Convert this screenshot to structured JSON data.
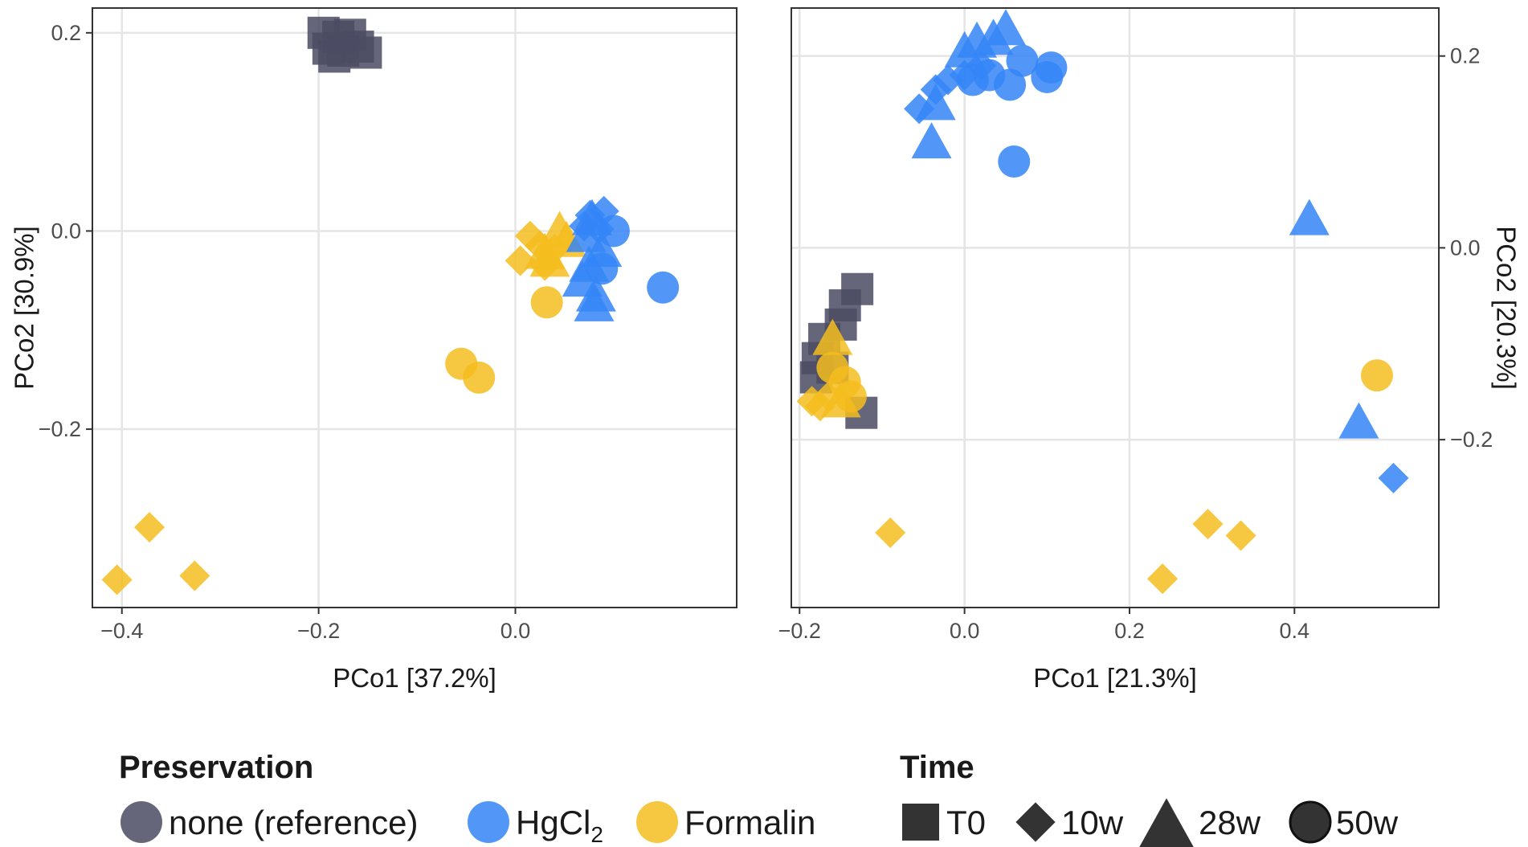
{
  "colors": {
    "none": "#4b4b63",
    "HgCl2": "#3485f7",
    "Formalin": "#f5bd1f",
    "shape_key": "#333333",
    "grid": "#e5e5e5",
    "frame": "#333333"
  },
  "chart_data": [
    {
      "type": "scatter",
      "xlabel": "PCo1 [37.2%]",
      "ylabel": "PCo2 [30.9%]",
      "xlim": [
        -0.43,
        0.225
      ],
      "ylim": [
        -0.38,
        0.225
      ],
      "xticks": [
        -0.4,
        -0.2,
        0.0
      ],
      "xtick_labels": [
        "−0.4",
        "−0.2",
        "0.0"
      ],
      "yticks": [
        -0.2,
        0.0,
        0.2
      ],
      "ytick_labels": [
        "−0.2",
        "0.0",
        "0.2"
      ],
      "y_axis_side": "left",
      "points": [
        {
          "x": -0.195,
          "y": 0.2,
          "p": "none",
          "t": "T0"
        },
        {
          "x": -0.18,
          "y": 0.196,
          "p": "none",
          "t": "T0"
        },
        {
          "x": -0.168,
          "y": 0.198,
          "p": "none",
          "t": "T0"
        },
        {
          "x": -0.19,
          "y": 0.184,
          "p": "none",
          "t": "T0"
        },
        {
          "x": -0.175,
          "y": 0.182,
          "p": "none",
          "t": "T0"
        },
        {
          "x": -0.16,
          "y": 0.186,
          "p": "none",
          "t": "T0"
        },
        {
          "x": -0.152,
          "y": 0.18,
          "p": "none",
          "t": "T0"
        },
        {
          "x": -0.184,
          "y": 0.176,
          "p": "none",
          "t": "T0"
        },
        {
          "x": -0.405,
          "y": -0.352,
          "p": "Formalin",
          "t": "10w"
        },
        {
          "x": -0.372,
          "y": -0.299,
          "p": "Formalin",
          "t": "10w"
        },
        {
          "x": -0.326,
          "y": -0.348,
          "p": "Formalin",
          "t": "10w"
        },
        {
          "x": 0.015,
          "y": -0.005,
          "p": "Formalin",
          "t": "10w"
        },
        {
          "x": 0.025,
          "y": -0.015,
          "p": "Formalin",
          "t": "10w"
        },
        {
          "x": 0.005,
          "y": -0.03,
          "p": "Formalin",
          "t": "10w"
        },
        {
          "x": 0.04,
          "y": -0.018,
          "p": "Formalin",
          "t": "10w"
        },
        {
          "x": 0.03,
          "y": -0.035,
          "p": "Formalin",
          "t": "10w"
        },
        {
          "x": 0.045,
          "y": 0.0,
          "p": "Formalin",
          "t": "28w"
        },
        {
          "x": 0.03,
          "y": -0.022,
          "p": "Formalin",
          "t": "28w"
        },
        {
          "x": 0.035,
          "y": -0.03,
          "p": "Formalin",
          "t": "28w"
        },
        {
          "x": 0.052,
          "y": -0.01,
          "p": "Formalin",
          "t": "28w"
        },
        {
          "x": 0.032,
          "y": -0.072,
          "p": "Formalin",
          "t": "50w"
        },
        {
          "x": -0.055,
          "y": -0.134,
          "p": "Formalin",
          "t": "50w"
        },
        {
          "x": -0.037,
          "y": -0.148,
          "p": "Formalin",
          "t": "50w"
        },
        {
          "x": 0.076,
          "y": 0.016,
          "p": "HgCl2",
          "t": "10w"
        },
        {
          "x": 0.09,
          "y": 0.02,
          "p": "HgCl2",
          "t": "10w"
        },
        {
          "x": 0.07,
          "y": 0.005,
          "p": "HgCl2",
          "t": "10w"
        },
        {
          "x": 0.085,
          "y": 0.002,
          "p": "HgCl2",
          "t": "10w"
        },
        {
          "x": 0.078,
          "y": 0.012,
          "p": "HgCl2",
          "t": "28w"
        },
        {
          "x": 0.072,
          "y": -0.005,
          "p": "HgCl2",
          "t": "28w"
        },
        {
          "x": 0.088,
          "y": -0.02,
          "p": "HgCl2",
          "t": "28w"
        },
        {
          "x": 0.075,
          "y": -0.035,
          "p": "HgCl2",
          "t": "28w"
        },
        {
          "x": 0.068,
          "y": -0.05,
          "p": "HgCl2",
          "t": "28w"
        },
        {
          "x": 0.082,
          "y": -0.065,
          "p": "HgCl2",
          "t": "28w"
        },
        {
          "x": 0.08,
          "y": -0.075,
          "p": "HgCl2",
          "t": "28w"
        },
        {
          "x": 0.1,
          "y": 0.0,
          "p": "HgCl2",
          "t": "50w"
        },
        {
          "x": 0.088,
          "y": -0.038,
          "p": "HgCl2",
          "t": "50w"
        },
        {
          "x": 0.15,
          "y": -0.057,
          "p": "HgCl2",
          "t": "50w"
        }
      ]
    },
    {
      "type": "scatter",
      "xlabel": "PCo1 [21.3%]",
      "ylabel": "PCo2 [20.3%]",
      "xlim": [
        -0.21,
        0.575
      ],
      "ylim": [
        -0.375,
        0.25
      ],
      "xticks": [
        -0.2,
        0.0,
        0.2,
        0.4
      ],
      "xtick_labels": [
        "−0.2",
        "0.0",
        "0.2",
        "0.4"
      ],
      "yticks": [
        -0.2,
        0.0,
        0.2
      ],
      "ytick_labels": [
        "−0.2",
        "0.0",
        "0.2"
      ],
      "y_axis_side": "right",
      "points": [
        {
          "x": -0.13,
          "y": -0.043,
          "p": "none",
          "t": "T0"
        },
        {
          "x": -0.145,
          "y": -0.06,
          "p": "none",
          "t": "T0"
        },
        {
          "x": -0.15,
          "y": -0.08,
          "p": "none",
          "t": "T0"
        },
        {
          "x": -0.17,
          "y": -0.095,
          "p": "none",
          "t": "T0"
        },
        {
          "x": -0.178,
          "y": -0.115,
          "p": "none",
          "t": "T0"
        },
        {
          "x": -0.18,
          "y": -0.135,
          "p": "none",
          "t": "T0"
        },
        {
          "x": -0.16,
          "y": -0.125,
          "p": "none",
          "t": "T0"
        },
        {
          "x": -0.125,
          "y": -0.172,
          "p": "none",
          "t": "T0"
        },
        {
          "x": -0.055,
          "y": 0.145,
          "p": "HgCl2",
          "t": "10w"
        },
        {
          "x": -0.035,
          "y": 0.165,
          "p": "HgCl2",
          "t": "10w"
        },
        {
          "x": -0.02,
          "y": 0.175,
          "p": "HgCl2",
          "t": "10w"
        },
        {
          "x": 0.0,
          "y": 0.18,
          "p": "HgCl2",
          "t": "10w"
        },
        {
          "x": 0.02,
          "y": 0.19,
          "p": "HgCl2",
          "t": "10w"
        },
        {
          "x": 0.52,
          "y": -0.24,
          "p": "HgCl2",
          "t": "10w"
        },
        {
          "x": 0.0,
          "y": 0.205,
          "p": "HgCl2",
          "t": "28w"
        },
        {
          "x": 0.015,
          "y": 0.215,
          "p": "HgCl2",
          "t": "28w"
        },
        {
          "x": 0.035,
          "y": 0.218,
          "p": "HgCl2",
          "t": "28w"
        },
        {
          "x": 0.05,
          "y": 0.228,
          "p": "HgCl2",
          "t": "28w"
        },
        {
          "x": -0.04,
          "y": 0.11,
          "p": "HgCl2",
          "t": "28w"
        },
        {
          "x": -0.035,
          "y": 0.15,
          "p": "HgCl2",
          "t": "28w"
        },
        {
          "x": 0.418,
          "y": 0.03,
          "p": "HgCl2",
          "t": "28w"
        },
        {
          "x": 0.478,
          "y": -0.182,
          "p": "HgCl2",
          "t": "28w"
        },
        {
          "x": 0.01,
          "y": 0.175,
          "p": "HgCl2",
          "t": "50w"
        },
        {
          "x": 0.03,
          "y": 0.18,
          "p": "HgCl2",
          "t": "50w"
        },
        {
          "x": 0.055,
          "y": 0.17,
          "p": "HgCl2",
          "t": "50w"
        },
        {
          "x": 0.07,
          "y": 0.195,
          "p": "HgCl2",
          "t": "50w"
        },
        {
          "x": 0.1,
          "y": 0.178,
          "p": "HgCl2",
          "t": "50w"
        },
        {
          "x": 0.105,
          "y": 0.188,
          "p": "HgCl2",
          "t": "50w"
        },
        {
          "x": 0.06,
          "y": 0.09,
          "p": "HgCl2",
          "t": "50w"
        },
        {
          "x": -0.185,
          "y": -0.16,
          "p": "Formalin",
          "t": "10w"
        },
        {
          "x": -0.175,
          "y": -0.165,
          "p": "Formalin",
          "t": "10w"
        },
        {
          "x": -0.165,
          "y": -0.155,
          "p": "Formalin",
          "t": "10w"
        },
        {
          "x": -0.09,
          "y": -0.297,
          "p": "Formalin",
          "t": "10w"
        },
        {
          "x": 0.24,
          "y": -0.345,
          "p": "Formalin",
          "t": "10w"
        },
        {
          "x": 0.295,
          "y": -0.288,
          "p": "Formalin",
          "t": "10w"
        },
        {
          "x": 0.335,
          "y": -0.3,
          "p": "Formalin",
          "t": "10w"
        },
        {
          "x": -0.16,
          "y": -0.095,
          "p": "Formalin",
          "t": "28w"
        },
        {
          "x": -0.15,
          "y": -0.16,
          "p": "Formalin",
          "t": "28w"
        },
        {
          "x": -0.16,
          "y": -0.125,
          "p": "Formalin",
          "t": "50w"
        },
        {
          "x": -0.145,
          "y": -0.14,
          "p": "Formalin",
          "t": "50w"
        },
        {
          "x": -0.138,
          "y": -0.155,
          "p": "Formalin",
          "t": "50w"
        },
        {
          "x": 0.5,
          "y": -0.133,
          "p": "Formalin",
          "t": "50w"
        }
      ]
    }
  ],
  "legend": {
    "preservation_title": "Preservation",
    "preservation": [
      {
        "key": "none",
        "label": "none (reference)"
      },
      {
        "key": "HgCl2",
        "label": "HgCl",
        "sub": "2"
      },
      {
        "key": "Formalin",
        "label": "Formalin"
      }
    ],
    "time_title": "Time",
    "time": [
      {
        "key": "T0",
        "label": "T0"
      },
      {
        "key": "10w",
        "label": "10w"
      },
      {
        "key": "28w",
        "label": "28w"
      },
      {
        "key": "50w",
        "label": "50w"
      }
    ]
  }
}
